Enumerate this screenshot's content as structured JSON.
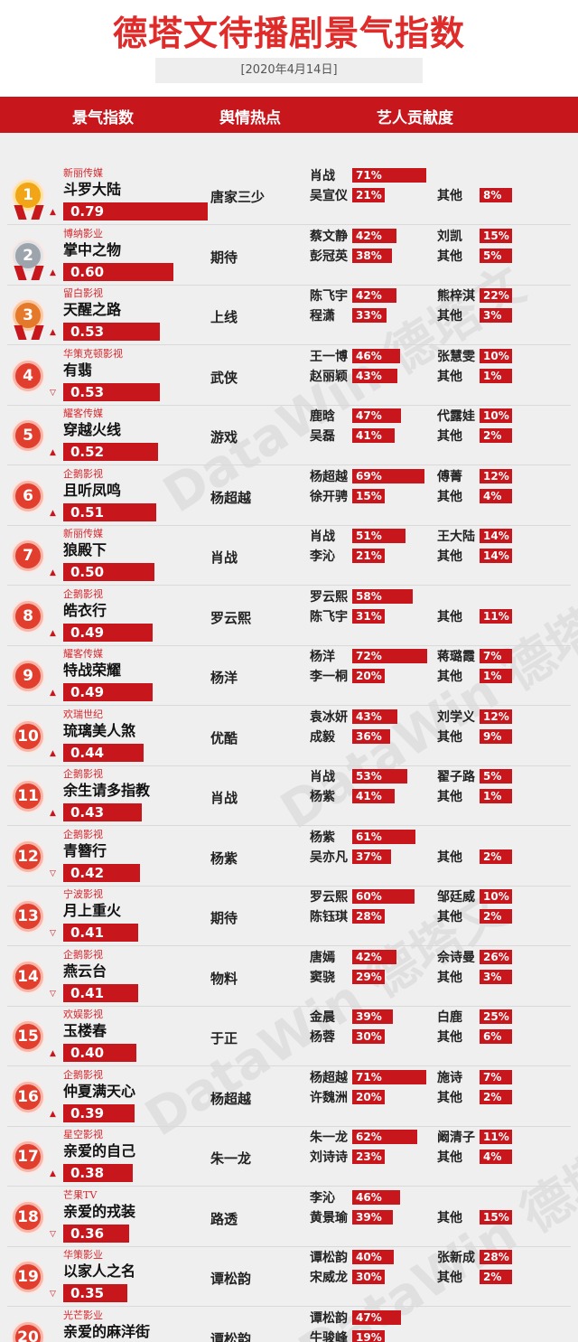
{
  "title": "德塔文待播剧景气指数",
  "date": "[2020年4月14日]",
  "headers": {
    "index": "景气指数",
    "hot": "舆情热点",
    "contrib": "艺人贡献度"
  },
  "watermark": "DataWin 德塔文",
  "chart_data": {
    "type": "table",
    "rows": [
      {
        "rank": "1",
        "company": "新丽传媒",
        "title": "斗罗大陆",
        "trend": "▲",
        "score": "0.79",
        "hot": "唐家三少",
        "artists": [
          {
            "name": "肖战",
            "pct": "71%"
          },
          {
            "name": "吴宣仪",
            "pct": "21%"
          },
          {
            "name": "其他",
            "pct": "8%"
          }
        ]
      },
      {
        "rank": "2",
        "company": "博纳影业",
        "title": "掌中之物",
        "trend": "▲",
        "score": "0.60",
        "hot": "期待",
        "artists": [
          {
            "name": "蔡文静",
            "pct": "42%"
          },
          {
            "name": "彭冠英",
            "pct": "38%"
          },
          {
            "name": "刘凯",
            "pct": "15%"
          },
          {
            "name": "其他",
            "pct": "5%"
          }
        ]
      },
      {
        "rank": "3",
        "company": "留白影视",
        "title": "天醒之路",
        "trend": "▲",
        "score": "0.53",
        "hot": "上线",
        "artists": [
          {
            "name": "陈飞宇",
            "pct": "42%"
          },
          {
            "name": "程潇",
            "pct": "33%"
          },
          {
            "name": "熊梓淇",
            "pct": "22%"
          },
          {
            "name": "其他",
            "pct": "3%"
          }
        ]
      },
      {
        "rank": "4",
        "company": "华策克顿影视",
        "title": "有翡",
        "trend": "▽",
        "score": "0.53",
        "hot": "武侠",
        "artists": [
          {
            "name": "王一博",
            "pct": "46%"
          },
          {
            "name": "赵丽颖",
            "pct": "43%"
          },
          {
            "name": "张慧雯",
            "pct": "10%"
          },
          {
            "name": "其他",
            "pct": "1%"
          }
        ]
      },
      {
        "rank": "5",
        "company": "耀客传媒",
        "title": "穿越火线",
        "trend": "▲",
        "score": "0.52",
        "hot": "游戏",
        "artists": [
          {
            "name": "鹿晗",
            "pct": "47%"
          },
          {
            "name": "吴磊",
            "pct": "41%"
          },
          {
            "name": "代露娃",
            "pct": "10%"
          },
          {
            "name": "其他",
            "pct": "2%"
          }
        ]
      },
      {
        "rank": "6",
        "company": "企鹅影视",
        "title": "且听凤鸣",
        "trend": "▲",
        "score": "0.51",
        "hot": "杨超越",
        "artists": [
          {
            "name": "杨超越",
            "pct": "69%"
          },
          {
            "name": "徐开骋",
            "pct": "15%"
          },
          {
            "name": "傅菁",
            "pct": "12%"
          },
          {
            "name": "其他",
            "pct": "4%"
          }
        ]
      },
      {
        "rank": "7",
        "company": "新丽传媒",
        "title": "狼殿下",
        "trend": "▲",
        "score": "0.50",
        "hot": "肖战",
        "artists": [
          {
            "name": "肖战",
            "pct": "51%"
          },
          {
            "name": "李沁",
            "pct": "21%"
          },
          {
            "name": "王大陆",
            "pct": "14%"
          },
          {
            "name": "其他",
            "pct": "14%"
          }
        ]
      },
      {
        "rank": "8",
        "company": "企鹅影视",
        "title": "皓衣行",
        "trend": "▲",
        "score": "0.49",
        "hot": "罗云熙",
        "artists": [
          {
            "name": "罗云熙",
            "pct": "58%"
          },
          {
            "name": "陈飞宇",
            "pct": "31%"
          },
          {
            "name": "其他",
            "pct": "11%"
          }
        ]
      },
      {
        "rank": "9",
        "company": "耀客传媒",
        "title": "特战荣耀",
        "trend": "▲",
        "score": "0.49",
        "hot": "杨洋",
        "artists": [
          {
            "name": "杨洋",
            "pct": "72%"
          },
          {
            "name": "李一桐",
            "pct": "20%"
          },
          {
            "name": "蒋璐霞",
            "pct": "7%"
          },
          {
            "name": "其他",
            "pct": "1%"
          }
        ]
      },
      {
        "rank": "10",
        "company": "欢瑞世纪",
        "title": "琉璃美人煞",
        "trend": "▲",
        "score": "0.44",
        "hot": "优酷",
        "artists": [
          {
            "name": "袁冰妍",
            "pct": "43%"
          },
          {
            "name": "成毅",
            "pct": "36%"
          },
          {
            "name": "刘学义",
            "pct": "12%"
          },
          {
            "name": "其他",
            "pct": "9%"
          }
        ]
      },
      {
        "rank": "11",
        "company": "企鹅影视",
        "title": "余生请多指教",
        "trend": "▲",
        "score": "0.43",
        "hot": "肖战",
        "artists": [
          {
            "name": "肖战",
            "pct": "53%"
          },
          {
            "name": "杨紫",
            "pct": "41%"
          },
          {
            "name": "翟子路",
            "pct": "5%"
          },
          {
            "name": "其他",
            "pct": "1%"
          }
        ]
      },
      {
        "rank": "12",
        "company": "企鹅影视",
        "title": "青簪行",
        "trend": "▽",
        "score": "0.42",
        "hot": "杨紫",
        "artists": [
          {
            "name": "杨紫",
            "pct": "61%"
          },
          {
            "name": "吴亦凡",
            "pct": "37%"
          },
          {
            "name": "其他",
            "pct": "2%"
          }
        ]
      },
      {
        "rank": "13",
        "company": "宁波影视",
        "title": "月上重火",
        "trend": "▽",
        "score": "0.41",
        "hot": "期待",
        "artists": [
          {
            "name": "罗云熙",
            "pct": "60%"
          },
          {
            "name": "陈钰琪",
            "pct": "28%"
          },
          {
            "name": "邹廷威",
            "pct": "10%"
          },
          {
            "name": "其他",
            "pct": "2%"
          }
        ]
      },
      {
        "rank": "14",
        "company": "企鹅影视",
        "title": "燕云台",
        "trend": "▽",
        "score": "0.41",
        "hot": "物料",
        "artists": [
          {
            "name": "唐嫣",
            "pct": "42%"
          },
          {
            "name": "窦骁",
            "pct": "29%"
          },
          {
            "name": "佘诗曼",
            "pct": "26%"
          },
          {
            "name": "其他",
            "pct": "3%"
          }
        ]
      },
      {
        "rank": "15",
        "company": "欢娱影视",
        "title": "玉楼春",
        "trend": "▲",
        "score": "0.40",
        "hot": "于正",
        "artists": [
          {
            "name": "金晨",
            "pct": "39%"
          },
          {
            "name": "杨蓉",
            "pct": "30%"
          },
          {
            "name": "白鹿",
            "pct": "25%"
          },
          {
            "name": "其他",
            "pct": "6%"
          }
        ]
      },
      {
        "rank": "16",
        "company": "企鹅影视",
        "title": "仲夏满天心",
        "trend": "▲",
        "score": "0.39",
        "hot": "杨超越",
        "artists": [
          {
            "name": "杨超越",
            "pct": "71%"
          },
          {
            "name": "许魏洲",
            "pct": "20%"
          },
          {
            "name": "施诗",
            "pct": "7%"
          },
          {
            "name": "其他",
            "pct": "2%"
          }
        ]
      },
      {
        "rank": "17",
        "company": "星空影视",
        "title": "亲爱的自己",
        "trend": "▲",
        "score": "0.38",
        "hot": "朱一龙",
        "artists": [
          {
            "name": "朱一龙",
            "pct": "62%"
          },
          {
            "name": "刘诗诗",
            "pct": "23%"
          },
          {
            "name": "阚清子",
            "pct": "11%"
          },
          {
            "name": "其他",
            "pct": "4%"
          }
        ]
      },
      {
        "rank": "18",
        "company": "芒果TV",
        "title": "亲爱的戎装",
        "trend": "▽",
        "score": "0.36",
        "hot": "路透",
        "artists": [
          {
            "name": "李沁",
            "pct": "46%"
          },
          {
            "name": "黄景瑜",
            "pct": "39%"
          },
          {
            "name": "其他",
            "pct": "15%"
          }
        ]
      },
      {
        "rank": "19",
        "company": "华策影业",
        "title": "以家人之名",
        "trend": "▽",
        "score": "0.35",
        "hot": "谭松韵",
        "artists": [
          {
            "name": "谭松韵",
            "pct": "40%"
          },
          {
            "name": "宋威龙",
            "pct": "30%"
          },
          {
            "name": "张新成",
            "pct": "28%"
          },
          {
            "name": "其他",
            "pct": "2%"
          }
        ]
      },
      {
        "rank": "20",
        "company": "光芒影业",
        "title": "亲爱的麻洋街",
        "trend": "",
        "score": "",
        "hot": "谭松韵",
        "artists": [
          {
            "name": "谭松韵",
            "pct": "47%"
          },
          {
            "name": "牛骏峰",
            "pct": "19%"
          }
        ]
      }
    ]
  }
}
